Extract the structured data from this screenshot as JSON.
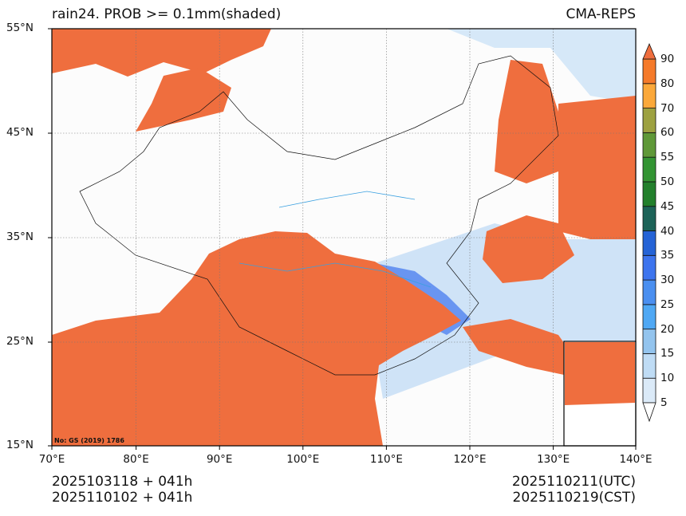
{
  "header": {
    "title": "rain24. PROB >= 0.1mm(shaded)",
    "source": "CMA-REPS"
  },
  "axes": {
    "lat_labels": [
      "55°N",
      "45°N",
      "35°N",
      "25°N",
      "15°N"
    ],
    "lon_labels": [
      "70°E",
      "80°E",
      "90°E",
      "100°E",
      "110°E",
      "120°E",
      "130°E",
      "140°E"
    ]
  },
  "approval_no": "No: GS (2019) 1786",
  "footer": {
    "left_line1": "2025103118  +  041h",
    "left_line2": "2025110102  +  041h",
    "right_line1": "2025110211(UTC)",
    "right_line2": "2025110219(CST)"
  },
  "colorbar": {
    "levels": [
      "5",
      "10",
      "15",
      "20",
      "25",
      "30",
      "35",
      "40",
      "45",
      "50",
      "55",
      "60",
      "70",
      "80",
      "90"
    ],
    "colors": [
      "#dbeaf8",
      "#bfdcf5",
      "#93c4ee",
      "#4fa8f4",
      "#4a8ff0",
      "#3d74ee",
      "#2563d6",
      "#1d6358",
      "#23802c",
      "#339433",
      "#5f9838",
      "#9da141",
      "#fba83a",
      "#f57a2a"
    ],
    "over_color": "#ef6e3e",
    "under_color": "#ffffff"
  },
  "chart_data": {
    "type": "heatmap",
    "title": "rain24. PROB >= 0.1mm(shaded)",
    "variable": "24h precipitation probability >= 0.1mm (%)",
    "xlim": [
      70,
      140
    ],
    "ylim": [
      15,
      55
    ],
    "xticks": [
      70,
      80,
      90,
      100,
      110,
      120,
      130,
      140
    ],
    "yticks": [
      15,
      25,
      35,
      45,
      55
    ],
    "grid": true,
    "legend": "right colorbar"
  }
}
